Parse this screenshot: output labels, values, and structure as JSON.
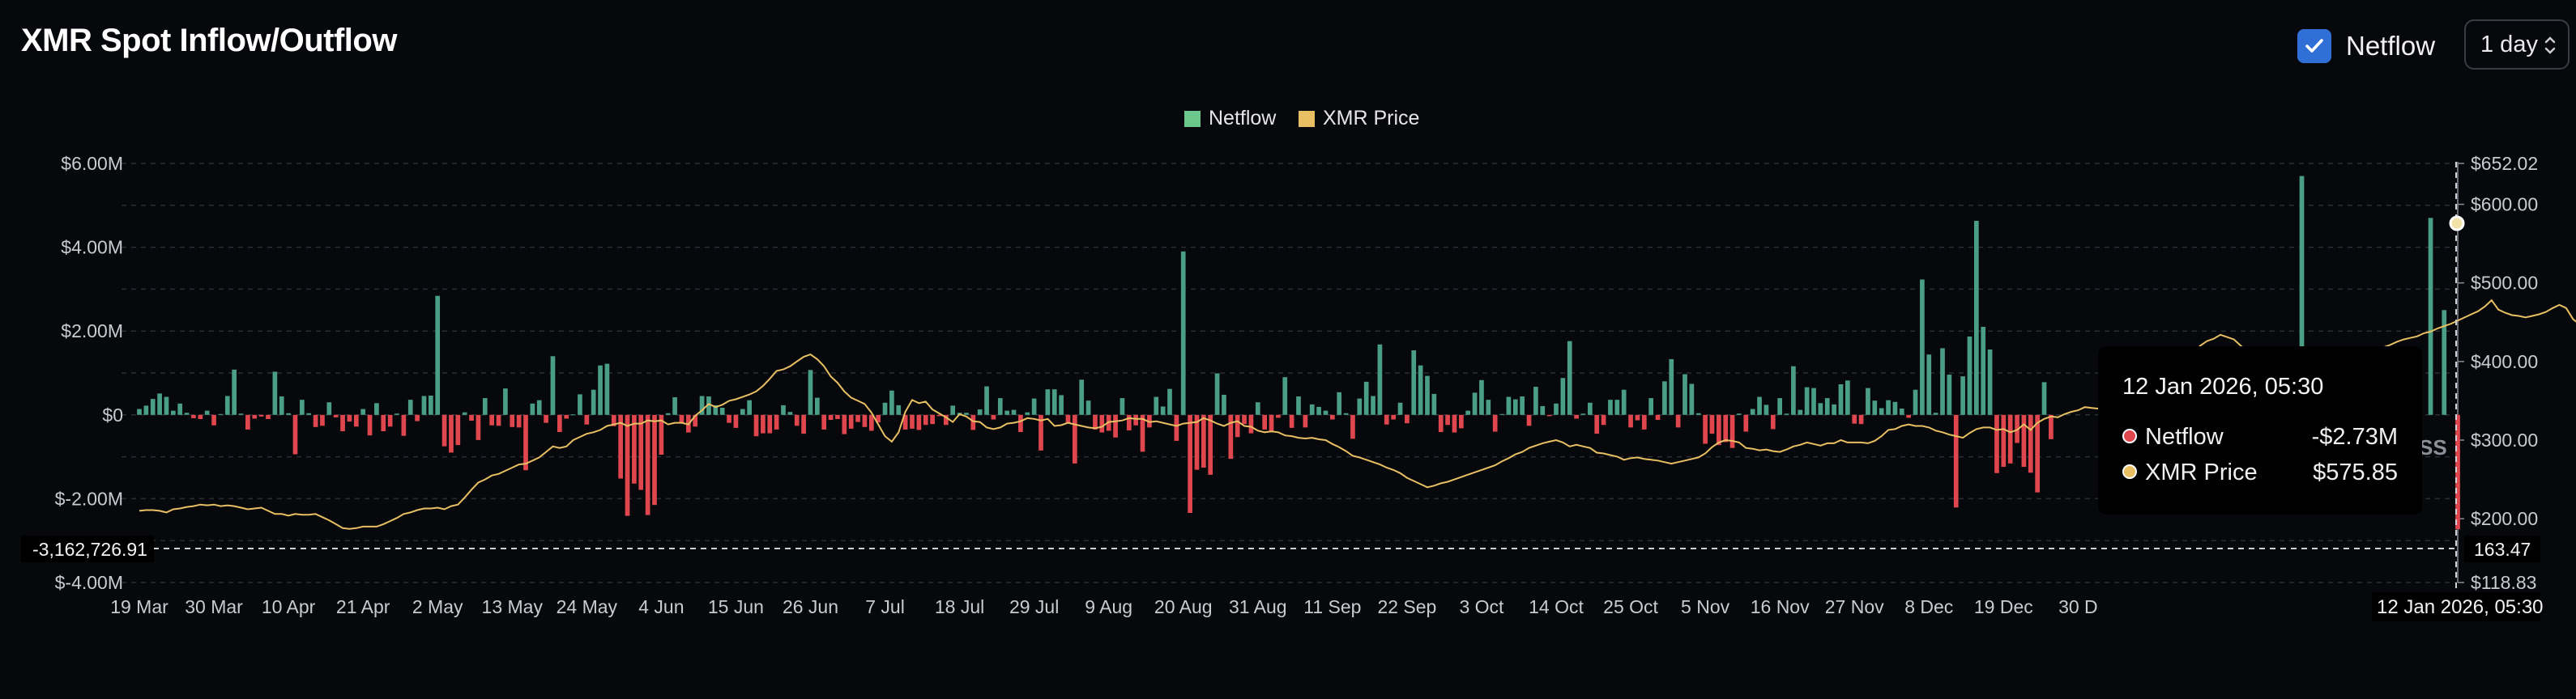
{
  "header": {
    "title": "XMR Spot Inflow/Outflow",
    "netflow_toggle_label": "Netflow",
    "netflow_checked": true,
    "interval_value": "1 day"
  },
  "colors": {
    "background": "#07080c",
    "positive_bar": "#4a9e84",
    "negative_bar": "#e0464d",
    "price_line": "#e8c063",
    "grid": "#2a2d35",
    "toggle": "#2f6fd6"
  },
  "legend": [
    {
      "label": "Netflow",
      "color": "#6cc78d"
    },
    {
      "label": "XMR Price",
      "color": "#e8c063"
    }
  ],
  "tooltip": {
    "date": "12 Jan 2026, 05:30",
    "rows": [
      {
        "label": "Netflow",
        "value": "-$2.73M",
        "dot": "#e0464d"
      },
      {
        "label": "XMR Price",
        "value": "$575.85",
        "dot": "#e8c063"
      }
    ]
  },
  "crosshair": {
    "y_value_label": "-3,162,726.91",
    "y_value": -3162726.91,
    "right_value_label": "163.47",
    "x_label": "12 Jan 2026, 05:30"
  },
  "watermark": "SS",
  "chart_data": {
    "type": "bar",
    "title": "XMR Spot Inflow/Outflow",
    "grid": true,
    "legend_position": "top-center",
    "x_tick_labels": [
      "19 Mar",
      "30 Mar",
      "10 Apr",
      "21 Apr",
      "2 May",
      "13 May",
      "24 May",
      "4 Jun",
      "15 Jun",
      "26 Jun",
      "7 Jul",
      "18 Jul",
      "29 Jul",
      "9 Aug",
      "20 Aug",
      "31 Aug",
      "11 Sep",
      "22 Sep",
      "3 Oct",
      "14 Oct",
      "25 Oct",
      "5 Nov",
      "16 Nov",
      "27 Nov",
      "8 Dec",
      "19 Dec",
      "30 D"
    ],
    "left_axis": {
      "ticks": [
        "$6.00M",
        "$4.00M",
        "$2.00M",
        "$0",
        "$-2.00M",
        "$-4.00M"
      ],
      "values": [
        6,
        4,
        2,
        0,
        -2,
        -4
      ],
      "ylim": [
        -4,
        6
      ],
      "unit": "USD millions"
    },
    "right_axis": {
      "ticks": [
        "$652.02",
        "$600.00",
        "$500.00",
        "$400.00",
        "$300.00",
        "$200.00",
        "$118.83"
      ],
      "values": [
        652.02,
        600,
        500,
        400,
        300,
        200,
        118.83
      ],
      "ylim": [
        118.83,
        652.02
      ],
      "unit": "USD"
    },
    "series": [
      {
        "name": "Netflow",
        "axis": "left",
        "type": "bar",
        "start_date": "2025-03-19",
        "values": [
          0.14,
          0.22,
          0.38,
          0.51,
          0.43,
          0.1,
          0.27,
          0.05,
          -0.08,
          -0.1,
          0.1,
          -0.25,
          0.02,
          0.45,
          1.08,
          0.03,
          -0.35,
          -0.09,
          -0.04,
          -0.1,
          1.03,
          0.44,
          0.04,
          -0.94,
          0.36,
          0.04,
          -0.29,
          -0.26,
          0.3,
          -0.06,
          -0.39,
          -0.16,
          -0.28,
          0.14,
          -0.49,
          0.28,
          -0.39,
          -0.28,
          0.03,
          -0.5,
          0.36,
          -0.15,
          0.45,
          0.46,
          2.84,
          -0.75,
          -0.9,
          -0.72,
          0.06,
          -0.14,
          -0.6,
          0.4,
          -0.25,
          -0.26,
          0.63,
          -0.29,
          -0.3,
          -1.32,
          0.27,
          0.35,
          -0.19,
          1.4,
          -0.41,
          -0.09,
          0.01,
          0.49,
          -0.23,
          0.6,
          1.18,
          1.22,
          -0.27,
          -1.52,
          -2.41,
          -1.64,
          -1.79,
          -2.39,
          -2.15,
          -0.95,
          0.04,
          0.42,
          -0.19,
          -0.42,
          -0.28,
          0.45,
          0.44,
          0.23,
          0.17,
          -0.19,
          -0.31,
          0.14,
          0.35,
          -0.51,
          -0.44,
          -0.44,
          -0.35,
          0.23,
          0.07,
          -0.26,
          -0.45,
          1.07,
          0.41,
          -0.35,
          -0.12,
          -0.1,
          -0.46,
          -0.33,
          -0.17,
          -0.29,
          -0.38,
          -0.18,
          0.29,
          0.58,
          0.23,
          -0.35,
          -0.33,
          -0.36,
          -0.24,
          -0.22,
          -0.03,
          -0.24,
          0.22,
          0.05,
          0.05,
          -0.36,
          0.13,
          0.68,
          -0.11,
          0.4,
          0.1,
          0.12,
          -0.41,
          0.06,
          0.39,
          -0.85,
          0.61,
          0.61,
          0.47,
          -0.19,
          -1.16,
          0.84,
          0.34,
          -0.35,
          -0.42,
          -0.38,
          -0.54,
          0.4,
          -0.37,
          -0.25,
          -0.88,
          -0.3,
          0.43,
          0.2,
          0.62,
          -0.62,
          3.9,
          -2.34,
          -1.31,
          -1.26,
          -1.43,
          0.99,
          0.48,
          -1.05,
          -0.53,
          -0.22,
          -0.44,
          0.3,
          -0.35,
          -0.39,
          -0.07,
          0.9,
          -0.31,
          0.44,
          -0.3,
          0.25,
          0.19,
          0.1,
          -0.11,
          0.54,
          0.04,
          -0.57,
          0.39,
          0.79,
          0.45,
          1.68,
          -0.23,
          -0.11,
          0.29,
          -0.2,
          1.54,
          1.18,
          0.93,
          0.5,
          -0.41,
          -0.24,
          -0.42,
          -0.32,
          0.1,
          0.53,
          0.83,
          0.36,
          -0.4,
          0.02,
          0.43,
          0.37,
          0.44,
          -0.26,
          0.67,
          0.21,
          -0.03,
          0.27,
          0.88,
          1.76,
          -0.09,
          0.03,
          0.29,
          -0.45,
          -0.24,
          0.36,
          0.36,
          0.6,
          -0.3,
          -0.13,
          -0.35,
          0.4,
          -0.12,
          0.8,
          1.33,
          -0.3,
          0.97,
          0.74,
          0.04,
          -0.69,
          -0.45,
          -0.72,
          -0.65,
          -0.79,
          0.03,
          -0.4,
          0.14,
          0.43,
          0.24,
          -0.34,
          0.4,
          0.03,
          1.16,
          0.12,
          0.66,
          0.64,
          0.28,
          0.4,
          0.25,
          0.73,
          0.82,
          -0.21,
          -0.22,
          0.64,
          0.34,
          0.16,
          0.35,
          0.31,
          0.15,
          -0.07,
          0.6,
          3.23,
          1.44,
          0.05,
          1.59,
          0.96,
          -2.21,
          0.92,
          1.87,
          4.63,
          2.1,
          1.56,
          -1.39,
          -1.24,
          -1.16,
          -0.67,
          -1.24,
          -1.38,
          -1.85,
          0.78,
          -0.58,
          0.0,
          0.0,
          0.0,
          0.0,
          0.0,
          0.0,
          0.0,
          0.0,
          0.0,
          0.0,
          0.0,
          0.0,
          0.0,
          0.0,
          0.0,
          0.0,
          0.0,
          0.0,
          0.0,
          0.0,
          0.0,
          0.0,
          0.0,
          0.0,
          0.0,
          0.0,
          0.0,
          0.0,
          0.0,
          0.0,
          0.0,
          0.0,
          0.0,
          0.0,
          0.0,
          0.0,
          5.7,
          0.0,
          0.0,
          0.0,
          0.0,
          0.0,
          0.0,
          0.0,
          0.0,
          0.0,
          0.0,
          0.0,
          0.0,
          0.0,
          0.0,
          0.0,
          0.0,
          -0.6,
          0.0,
          4.7,
          0.0,
          2.5,
          0.0,
          -2.73
        ]
      },
      {
        "name": "XMR Price",
        "axis": "right",
        "type": "line",
        "start_date": "2025-03-19",
        "values": [
          210,
          211,
          211,
          210,
          208,
          212,
          213,
          215,
          216,
          218,
          217,
          218,
          216,
          217,
          216,
          214,
          212,
          213,
          214,
          210,
          206,
          206,
          204,
          206,
          205,
          205,
          206,
          202,
          198,
          193,
          188,
          187,
          188,
          190,
          190,
          190,
          193,
          197,
          201,
          206,
          208,
          211,
          213,
          213,
          214,
          212,
          216,
          218,
          227,
          237,
          246,
          250,
          255,
          257,
          261,
          265,
          269,
          270,
          274,
          278,
          285,
          292,
          290,
          292,
          300,
          304,
          308,
          310,
          313,
          318,
          320,
          322,
          318,
          321,
          321,
          325,
          324,
          325,
          320,
          322,
          322,
          320,
          331,
          338,
          346,
          342,
          345,
          350,
          352,
          355,
          358,
          362,
          369,
          378,
          388,
          390,
          394,
          400,
          406,
          409,
          403,
          394,
          381,
          373,
          362,
          354,
          350,
          346,
          335,
          320,
          305,
          298,
          310,
          336,
          351,
          347,
          349,
          339,
          334,
          329,
          323,
          333,
          330,
          324,
          323,
          316,
          314,
          316,
          321,
          322,
          324,
          328,
          327,
          325,
          327,
          318,
          319,
          322,
          320,
          318,
          316,
          315,
          317,
          323,
          324,
          325,
          328,
          327,
          327,
          323,
          324,
          322,
          320,
          318,
          321,
          322,
          323,
          328,
          325,
          321,
          318,
          322,
          324,
          318,
          317,
          312,
          310,
          311,
          310,
          306,
          305,
          303,
          302,
          303,
          301,
          300,
          295,
          291,
          286,
          280,
          278,
          275,
          272,
          269,
          265,
          262,
          258,
          252,
          248,
          244,
          240,
          242,
          245,
          247,
          250,
          253,
          256,
          259,
          262,
          265,
          268,
          273,
          277,
          282,
          285,
          290,
          293,
          296,
          298,
          300,
          297,
          292,
          294,
          292,
          290,
          284,
          283,
          281,
          279,
          275,
          277,
          278,
          276,
          275,
          274,
          272,
          270,
          272,
          274,
          276,
          278,
          283,
          291,
          297,
          300,
          299,
          297,
          290,
          289,
          287,
          288,
          286,
          285,
          288,
          292,
          294,
          297,
          295,
          293,
          296,
          296,
          300,
          297,
          297,
          297,
          296,
          299,
          305,
          313,
          314,
          318,
          320,
          318,
          318,
          316,
          312,
          310,
          307,
          305,
          303,
          309,
          314,
          316,
          316,
          313,
          314,
          310,
          313,
          320,
          313,
          322,
          327,
          330,
          329,
          333,
          336,
          338,
          342,
          341,
          340,
          345,
          350,
          354,
          357,
          358,
          360,
          361,
          365,
          372,
          380,
          388,
          396,
          405,
          412,
          420,
          426,
          429,
          434,
          431,
          428,
          420,
          414,
          406,
          400,
          394,
          387,
          380,
          373,
          368,
          366,
          365,
          369,
          376,
          384,
          392,
          398,
          402,
          406,
          410,
          412,
          416,
          418,
          421,
          425,
          428,
          430,
          432,
          436,
          438,
          442,
          445,
          448,
          452,
          456,
          460,
          464,
          470,
          478,
          466,
          462,
          459,
          458,
          456,
          458,
          460,
          463,
          468,
          472,
          468,
          454,
          447,
          445,
          444,
          446,
          447,
          448,
          449,
          448,
          448,
          447,
          446,
          448,
          448,
          446,
          448,
          449,
          451,
          454,
          455,
          457,
          460,
          463,
          467,
          472,
          478,
          485,
          492,
          500,
          575.85
        ]
      }
    ]
  }
}
